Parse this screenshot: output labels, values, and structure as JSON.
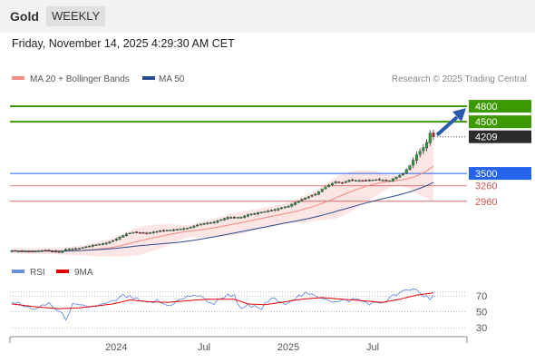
{
  "header": {
    "symbol": "Gold",
    "period": "WEEKLY"
  },
  "timestamp": "Friday, November 14, 2025 4:29:30 AM CET",
  "legend": {
    "ma20": {
      "label": "MA 20 + Bollinger Bands",
      "color": "#f28b82"
    },
    "ma50": {
      "label": "MA 50",
      "color": "#2a4d8f"
    }
  },
  "copyright": "Research © 2025 Trading Central",
  "rsi_legend": {
    "rsi": {
      "label": "RSI",
      "color": "#6a8fe0"
    },
    "ma9": {
      "label": "9MA",
      "color": "#e00000"
    }
  },
  "chart_data": [
    {
      "type": "candlestick",
      "title": "",
      "x_tick_labels": [
        "2024",
        "Jul",
        "2025",
        "Jul"
      ],
      "ylim": [
        1850,
        5100
      ],
      "levels": [
        {
          "label": "4800",
          "value": 4800,
          "kind": "target",
          "color": "#3c9a00"
        },
        {
          "label": "4500",
          "value": 4500,
          "kind": "target",
          "color": "#3c9a00"
        },
        {
          "label": "4209",
          "value": 4209,
          "kind": "last-price",
          "color": "#2b2b2b"
        },
        {
          "label": "3500",
          "value": 3500,
          "kind": "pivot",
          "color": "#2563eb"
        },
        {
          "label": "3260",
          "value": 3260,
          "kind": "support",
          "color": "#d9534f"
        },
        {
          "label": "2960",
          "value": 2960,
          "kind": "support",
          "color": "#d9534f"
        }
      ],
      "close_anchors": [
        [
          0,
          2000
        ],
        [
          6,
          1990
        ],
        [
          10,
          2010
        ],
        [
          14,
          1970
        ],
        [
          16,
          2030
        ],
        [
          20,
          2050
        ],
        [
          24,
          2110
        ],
        [
          28,
          2150
        ],
        [
          30,
          2200
        ],
        [
          34,
          2330
        ],
        [
          36,
          2360
        ],
        [
          40,
          2340
        ],
        [
          44,
          2390
        ],
        [
          48,
          2410
        ],
        [
          52,
          2440
        ],
        [
          56,
          2520
        ],
        [
          60,
          2560
        ],
        [
          64,
          2650
        ],
        [
          68,
          2650
        ],
        [
          70,
          2700
        ],
        [
          74,
          2750
        ],
        [
          78,
          2800
        ],
        [
          82,
          2870
        ],
        [
          86,
          3000
        ],
        [
          90,
          3100
        ],
        [
          93,
          3240
        ],
        [
          96,
          3340
        ],
        [
          98,
          3320
        ],
        [
          100,
          3370
        ],
        [
          104,
          3360
        ],
        [
          108,
          3380
        ],
        [
          112,
          3360
        ],
        [
          116,
          3500
        ],
        [
          118,
          3650
        ],
        [
          120,
          3860
        ],
        [
          122,
          4000
        ],
        [
          123,
          4100
        ],
        [
          124,
          4280
        ],
        [
          125,
          4209
        ]
      ],
      "rsi": {
        "ylim": [
          20,
          85
        ],
        "gridlines": [
          70,
          50,
          30
        ],
        "overbought_line": 75,
        "rsi_anchors": [
          [
            0,
            64
          ],
          [
            4,
            56
          ],
          [
            8,
            54
          ],
          [
            11,
            61
          ],
          [
            14,
            50
          ],
          [
            16,
            42
          ],
          [
            18,
            58
          ],
          [
            22,
            56
          ],
          [
            26,
            58
          ],
          [
            30,
            62
          ],
          [
            33,
            70
          ],
          [
            36,
            67
          ],
          [
            40,
            60
          ],
          [
            43,
            64
          ],
          [
            46,
            58
          ],
          [
            50,
            65
          ],
          [
            54,
            72
          ],
          [
            57,
            66
          ],
          [
            60,
            60
          ],
          [
            63,
            70
          ],
          [
            66,
            72
          ],
          [
            68,
            52
          ],
          [
            70,
            57
          ],
          [
            74,
            54
          ],
          [
            77,
            68
          ],
          [
            80,
            60
          ],
          [
            84,
            68
          ],
          [
            87,
            72
          ],
          [
            90,
            70
          ],
          [
            93,
            68
          ],
          [
            96,
            62
          ],
          [
            99,
            64
          ],
          [
            102,
            66
          ],
          [
            105,
            62
          ],
          [
            108,
            60
          ],
          [
            111,
            64
          ],
          [
            114,
            72
          ],
          [
            117,
            76
          ],
          [
            120,
            79
          ],
          [
            122,
            70
          ],
          [
            124,
            68
          ],
          [
            125,
            72
          ]
        ],
        "ma9_anchors": [
          [
            0,
            60
          ],
          [
            8,
            56
          ],
          [
            14,
            54
          ],
          [
            20,
            55
          ],
          [
            26,
            58
          ],
          [
            30,
            60
          ],
          [
            35,
            65
          ],
          [
            40,
            63
          ],
          [
            46,
            62
          ],
          [
            52,
            64
          ],
          [
            58,
            66
          ],
          [
            62,
            66
          ],
          [
            66,
            66
          ],
          [
            70,
            60
          ],
          [
            75,
            59
          ],
          [
            80,
            62
          ],
          [
            86,
            66
          ],
          [
            92,
            68
          ],
          [
            98,
            66
          ],
          [
            104,
            64
          ],
          [
            110,
            62
          ],
          [
            115,
            66
          ],
          [
            120,
            71
          ],
          [
            125,
            74
          ]
        ]
      }
    }
  ]
}
